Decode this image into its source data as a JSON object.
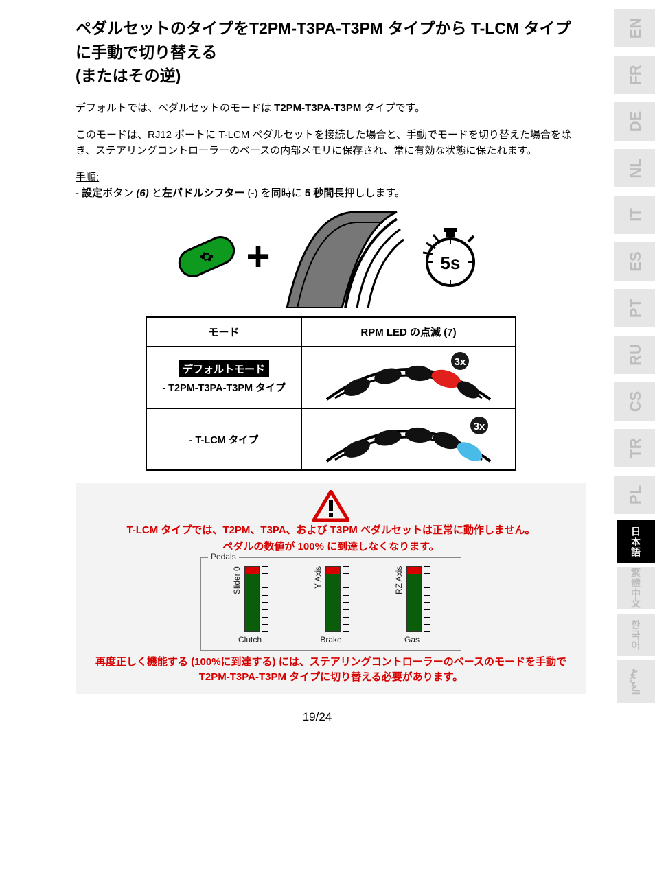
{
  "title_line1": "ペダルセットのタイプをT2PM-T3PA-T3PM タイプから T-LCM タイプに手動で切り替える",
  "title_line2": "(またはその逆)",
  "para1_pre": "デフォルトでは、ペダルセットのモードは ",
  "para1_bold": "T2PM-T3PA-T3PM",
  "para1_post": " タイプです。",
  "para2": "このモードは、RJ12 ポートに T-LCM ペダルセットを接続した場合と、手動でモードを切り替えた場合を除き、ステアリングコントローラーのベースの内部メモリに保存され、常に有効な状態に保たれます。",
  "procedure_label": "手順:",
  "step_dash": "- ",
  "step_b1": "設定",
  "step_t1": "ボタン ",
  "step_b2": "(6)",
  "step_t2": " と",
  "step_b3": "左パドルシフター",
  "step_t3": " (",
  "step_b4": "-",
  "step_t4": ") を同時に ",
  "step_b5": "5 秒間",
  "step_t5": "長押しします。",
  "timer_label": "5s",
  "table": {
    "h1": "モード",
    "h2": "RPM LED の点滅 (7)",
    "default_badge": "デフォルトモード",
    "row1_label": "- T2PM-T3PA-T3PM タイプ",
    "row2_label": "- T-LCM タイプ",
    "blink_badge": "3x",
    "led_colors": {
      "off": "#111111",
      "row1_highlight": "#e2201b",
      "row2_highlight": "#49bbe8",
      "outline": "#000000"
    }
  },
  "warning": {
    "line1": "T-LCM タイプでは、T2PM、T3PA、および T3PM ペダルセットは正常に動作しません。",
    "line2": "ペダルの数値が 100% に到達しなくなります。",
    "line3": "再度正しく機能する (100%に到達する) には、ステアリングコントローラーのベースのモードを手動で T2PM-T3PA-T3PM タイプに切り替える必要があります。",
    "colors": {
      "text": "#d60000",
      "triangle": "#d60000"
    }
  },
  "pedals": {
    "legend": "Pedals",
    "items": [
      {
        "axis": "Slider 0",
        "name": "Clutch",
        "fill": 100,
        "red_top_pct": 10
      },
      {
        "axis": "Y Axis",
        "name": "Brake",
        "fill": 100,
        "red_top_pct": 10
      },
      {
        "axis": "RZ Axis",
        "name": "Gas",
        "fill": 100,
        "red_top_pct": 10
      }
    ],
    "colors": {
      "bar": "#0a5d0a",
      "top": "#d60000",
      "border": "#333333"
    }
  },
  "languages": [
    {
      "code": "EN",
      "latin": true
    },
    {
      "code": "FR",
      "latin": true
    },
    {
      "code": "DE",
      "latin": true
    },
    {
      "code": "NL",
      "latin": true
    },
    {
      "code": "IT",
      "latin": true
    },
    {
      "code": "ES",
      "latin": true
    },
    {
      "code": "PT",
      "latin": true
    },
    {
      "code": "RU",
      "latin": true
    },
    {
      "code": "CS",
      "latin": true
    },
    {
      "code": "TR",
      "latin": true
    },
    {
      "code": "PL",
      "latin": true
    },
    {
      "code": "日本語",
      "latin": false,
      "active": true
    },
    {
      "code": "繁體中文",
      "latin": false
    },
    {
      "code": "한국어",
      "latin": false
    },
    {
      "code": "العربية",
      "latin": false
    }
  ],
  "page_number": "19/24"
}
